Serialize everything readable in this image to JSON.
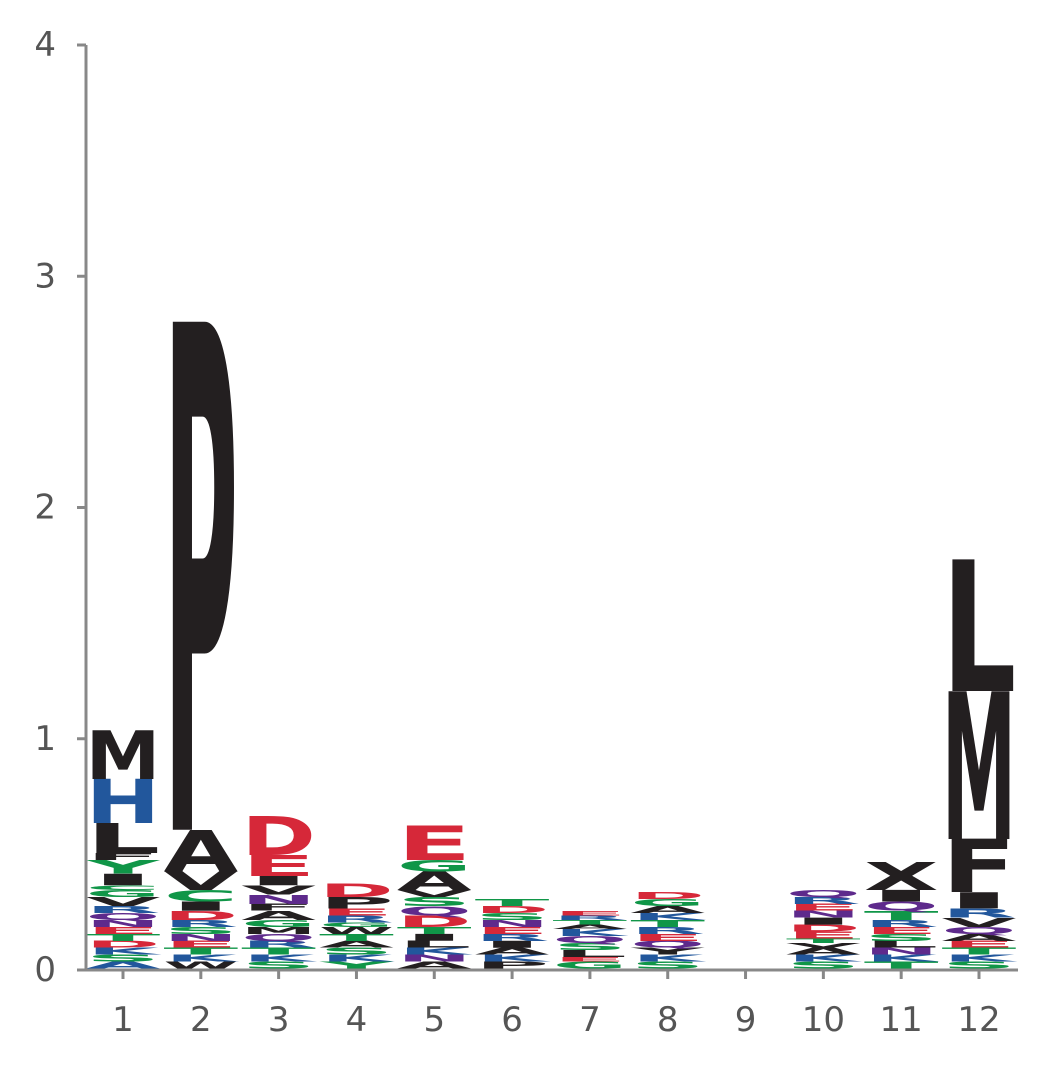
{
  "chart_data": {
    "type": "sequence-logo",
    "ylim": [
      0,
      4
    ],
    "yticks": [
      "0",
      "1",
      "2",
      "3",
      "4"
    ],
    "positions": [
      "1",
      "2",
      "3",
      "4",
      "5",
      "6",
      "7",
      "8",
      "9",
      "10",
      "11",
      "12"
    ],
    "colors": {
      "black": "#231f20",
      "red": "#d62839",
      "blue": "#22579c",
      "green": "#109648",
      "purple": "#5e2a8c"
    },
    "stacks": [
      [
        {
          "letter": "A",
          "height": 0.03,
          "color": "blue"
        },
        {
          "letter": "S",
          "height": 0.03,
          "color": "green"
        },
        {
          "letter": "K",
          "height": 0.03,
          "color": "blue"
        },
        {
          "letter": "D",
          "height": 0.03,
          "color": "red"
        },
        {
          "letter": "T",
          "height": 0.03,
          "color": "green"
        },
        {
          "letter": "E",
          "height": 0.03,
          "color": "red"
        },
        {
          "letter": "N",
          "height": 0.03,
          "color": "purple"
        },
        {
          "letter": "Q",
          "height": 0.03,
          "color": "purple"
        },
        {
          "letter": "R",
          "height": 0.03,
          "color": "blue"
        },
        {
          "letter": "V",
          "height": 0.04,
          "color": "black"
        },
        {
          "letter": "G",
          "height": 0.03,
          "color": "green"
        },
        {
          "letter": "C",
          "height": 0.02,
          "color": "green"
        },
        {
          "letter": "I",
          "height": 0.05,
          "color": "black"
        },
        {
          "letter": "Y",
          "height": 0.06,
          "color": "green"
        },
        {
          "letter": "F",
          "height": 0.03,
          "color": "black"
        },
        {
          "letter": "L",
          "height": 0.13,
          "color": "black"
        },
        {
          "letter": "H",
          "height": 0.19,
          "color": "blue"
        },
        {
          "letter": "M",
          "height": 0.21,
          "color": "black"
        }
      ],
      [
        {
          "letter": "W",
          "height": 0.03,
          "color": "black"
        },
        {
          "letter": "K",
          "height": 0.03,
          "color": "blue"
        },
        {
          "letter": "T",
          "height": 0.03,
          "color": "green"
        },
        {
          "letter": "E",
          "height": 0.03,
          "color": "red"
        },
        {
          "letter": "N",
          "height": 0.03,
          "color": "purple"
        },
        {
          "letter": "S",
          "height": 0.03,
          "color": "green"
        },
        {
          "letter": "R",
          "height": 0.03,
          "color": "blue"
        },
        {
          "letter": "D",
          "height": 0.04,
          "color": "red"
        },
        {
          "letter": "I",
          "height": 0.04,
          "color": "black"
        },
        {
          "letter": "C",
          "height": 0.05,
          "color": "green"
        },
        {
          "letter": "V",
          "height": 0.08,
          "color": "black"
        },
        {
          "letter": "A",
          "height": 0.18,
          "color": "black"
        },
        {
          "letter": "P",
          "height": 2.2,
          "color": "black"
        }
      ],
      [
        {
          "letter": "S",
          "height": 0.03,
          "color": "green"
        },
        {
          "letter": "K",
          "height": 0.03,
          "color": "blue"
        },
        {
          "letter": "T",
          "height": 0.03,
          "color": "green"
        },
        {
          "letter": "R",
          "height": 0.03,
          "color": "blue"
        },
        {
          "letter": "Q",
          "height": 0.03,
          "color": "purple"
        },
        {
          "letter": "M",
          "height": 0.03,
          "color": "black"
        },
        {
          "letter": "G",
          "height": 0.03,
          "color": "green"
        },
        {
          "letter": "A",
          "height": 0.04,
          "color": "black"
        },
        {
          "letter": "F",
          "height": 0.03,
          "color": "black"
        },
        {
          "letter": "N",
          "height": 0.04,
          "color": "purple"
        },
        {
          "letter": "V",
          "height": 0.04,
          "color": "black"
        },
        {
          "letter": "I",
          "height": 0.04,
          "color": "black"
        },
        {
          "letter": "E",
          "height": 0.09,
          "color": "red"
        },
        {
          "letter": "D",
          "height": 0.17,
          "color": "red"
        }
      ],
      [
        {
          "letter": "Y",
          "height": 0.03,
          "color": "green"
        },
        {
          "letter": "K",
          "height": 0.03,
          "color": "blue"
        },
        {
          "letter": "S",
          "height": 0.03,
          "color": "green"
        },
        {
          "letter": "A",
          "height": 0.03,
          "color": "black"
        },
        {
          "letter": "T",
          "height": 0.03,
          "color": "green"
        },
        {
          "letter": "W",
          "height": 0.03,
          "color": "black"
        },
        {
          "letter": "G",
          "height": 0.02,
          "color": "green"
        },
        {
          "letter": "R",
          "height": 0.03,
          "color": "blue"
        },
        {
          "letter": "E",
          "height": 0.03,
          "color": "red"
        },
        {
          "letter": "P",
          "height": 0.05,
          "color": "black"
        },
        {
          "letter": "D",
          "height": 0.06,
          "color": "red"
        }
      ],
      [
        {
          "letter": "A",
          "height": 0.03,
          "color": "black"
        },
        {
          "letter": "N",
          "height": 0.03,
          "color": "purple"
        },
        {
          "letter": "K",
          "height": 0.03,
          "color": "blue"
        },
        {
          "letter": "L",
          "height": 0.03,
          "color": "black"
        },
        {
          "letter": "I",
          "height": 0.03,
          "color": "black"
        },
        {
          "letter": "T",
          "height": 0.03,
          "color": "green"
        },
        {
          "letter": "D",
          "height": 0.05,
          "color": "red"
        },
        {
          "letter": "Q",
          "height": 0.04,
          "color": "purple"
        },
        {
          "letter": "S",
          "height": 0.04,
          "color": "green"
        },
        {
          "letter": "V",
          "height": 0.03,
          "color": "black"
        },
        {
          "letter": "A",
          "height": 0.08,
          "color": "black"
        },
        {
          "letter": "G",
          "height": 0.05,
          "color": "green"
        },
        {
          "letter": "E",
          "height": 0.15,
          "color": "red"
        }
      ],
      [
        {
          "letter": "P",
          "height": 0.03,
          "color": "black"
        },
        {
          "letter": "K",
          "height": 0.03,
          "color": "blue"
        },
        {
          "letter": "A",
          "height": 0.03,
          "color": "black"
        },
        {
          "letter": "I",
          "height": 0.03,
          "color": "black"
        },
        {
          "letter": "R",
          "height": 0.03,
          "color": "blue"
        },
        {
          "letter": "E",
          "height": 0.03,
          "color": "red"
        },
        {
          "letter": "N",
          "height": 0.03,
          "color": "purple"
        },
        {
          "letter": "S",
          "height": 0.03,
          "color": "green"
        },
        {
          "letter": "D",
          "height": 0.03,
          "color": "red"
        },
        {
          "letter": "T",
          "height": 0.03,
          "color": "green"
        }
      ],
      [
        {
          "letter": "G",
          "height": 0.03,
          "color": "green"
        },
        {
          "letter": "E",
          "height": 0.02,
          "color": "red"
        },
        {
          "letter": "L",
          "height": 0.03,
          "color": "black"
        },
        {
          "letter": "S",
          "height": 0.03,
          "color": "green"
        },
        {
          "letter": "Q",
          "height": 0.03,
          "color": "purple"
        },
        {
          "letter": "K",
          "height": 0.03,
          "color": "blue"
        },
        {
          "letter": "A",
          "height": 0.02,
          "color": "black"
        },
        {
          "letter": "T",
          "height": 0.02,
          "color": "green"
        },
        {
          "letter": "R",
          "height": 0.02,
          "color": "blue"
        },
        {
          "letter": "E",
          "height": 0.02,
          "color": "red"
        }
      ],
      [
        {
          "letter": "S",
          "height": 0.03,
          "color": "green"
        },
        {
          "letter": "K",
          "height": 0.03,
          "color": "blue"
        },
        {
          "letter": "Y",
          "height": 0.03,
          "color": "black"
        },
        {
          "letter": "Q",
          "height": 0.03,
          "color": "purple"
        },
        {
          "letter": "E",
          "height": 0.03,
          "color": "red"
        },
        {
          "letter": "R",
          "height": 0.03,
          "color": "blue"
        },
        {
          "letter": "T",
          "height": 0.03,
          "color": "green"
        },
        {
          "letter": "K",
          "height": 0.03,
          "color": "blue"
        },
        {
          "letter": "A",
          "height": 0.03,
          "color": "black"
        },
        {
          "letter": "G",
          "height": 0.03,
          "color": "green"
        },
        {
          "letter": "D",
          "height": 0.03,
          "color": "red"
        }
      ],
      [],
      [
        {
          "letter": "S",
          "height": 0.03,
          "color": "green"
        },
        {
          "letter": "K",
          "height": 0.03,
          "color": "blue"
        },
        {
          "letter": "A",
          "height": 0.03,
          "color": "black"
        },
        {
          "letter": "V",
          "height": 0.02,
          "color": "black"
        },
        {
          "letter": "T",
          "height": 0.02,
          "color": "green"
        },
        {
          "letter": "E",
          "height": 0.03,
          "color": "red"
        },
        {
          "letter": "D",
          "height": 0.03,
          "color": "red"
        },
        {
          "letter": "I",
          "height": 0.03,
          "color": "black"
        },
        {
          "letter": "N",
          "height": 0.03,
          "color": "purple"
        },
        {
          "letter": "E",
          "height": 0.03,
          "color": "red"
        },
        {
          "letter": "R",
          "height": 0.03,
          "color": "blue"
        },
        {
          "letter": "Q",
          "height": 0.03,
          "color": "purple"
        }
      ],
      [
        {
          "letter": "T",
          "height": 0.03,
          "color": "green"
        },
        {
          "letter": "K",
          "height": 0.03,
          "color": "blue"
        },
        {
          "letter": "N",
          "height": 0.03,
          "color": "purple"
        },
        {
          "letter": "L",
          "height": 0.03,
          "color": "black"
        },
        {
          "letter": "S",
          "height": 0.03,
          "color": "green"
        },
        {
          "letter": "E",
          "height": 0.03,
          "color": "red"
        },
        {
          "letter": "R",
          "height": 0.03,
          "color": "blue"
        },
        {
          "letter": "T",
          "height": 0.04,
          "color": "green"
        },
        {
          "letter": "Q",
          "height": 0.04,
          "color": "purple"
        },
        {
          "letter": "I",
          "height": 0.05,
          "color": "black"
        },
        {
          "letter": "X",
          "height": 0.12,
          "color": "black"
        }
      ],
      [
        {
          "letter": "S",
          "height": 0.03,
          "color": "green"
        },
        {
          "letter": "K",
          "height": 0.03,
          "color": "blue"
        },
        {
          "letter": "T",
          "height": 0.03,
          "color": "green"
        },
        {
          "letter": "E",
          "height": 0.03,
          "color": "red"
        },
        {
          "letter": "A",
          "height": 0.03,
          "color": "black"
        },
        {
          "letter": "Q",
          "height": 0.03,
          "color": "purple"
        },
        {
          "letter": "V",
          "height": 0.04,
          "color": "black"
        },
        {
          "letter": "R",
          "height": 0.04,
          "color": "blue"
        },
        {
          "letter": "I",
          "height": 0.07,
          "color": "black"
        },
        {
          "letter": "F",
          "height": 0.23,
          "color": "black"
        },
        {
          "letter": "M",
          "height": 0.64,
          "color": "black"
        },
        {
          "letter": "L",
          "height": 0.57,
          "color": "black"
        }
      ]
    ]
  }
}
